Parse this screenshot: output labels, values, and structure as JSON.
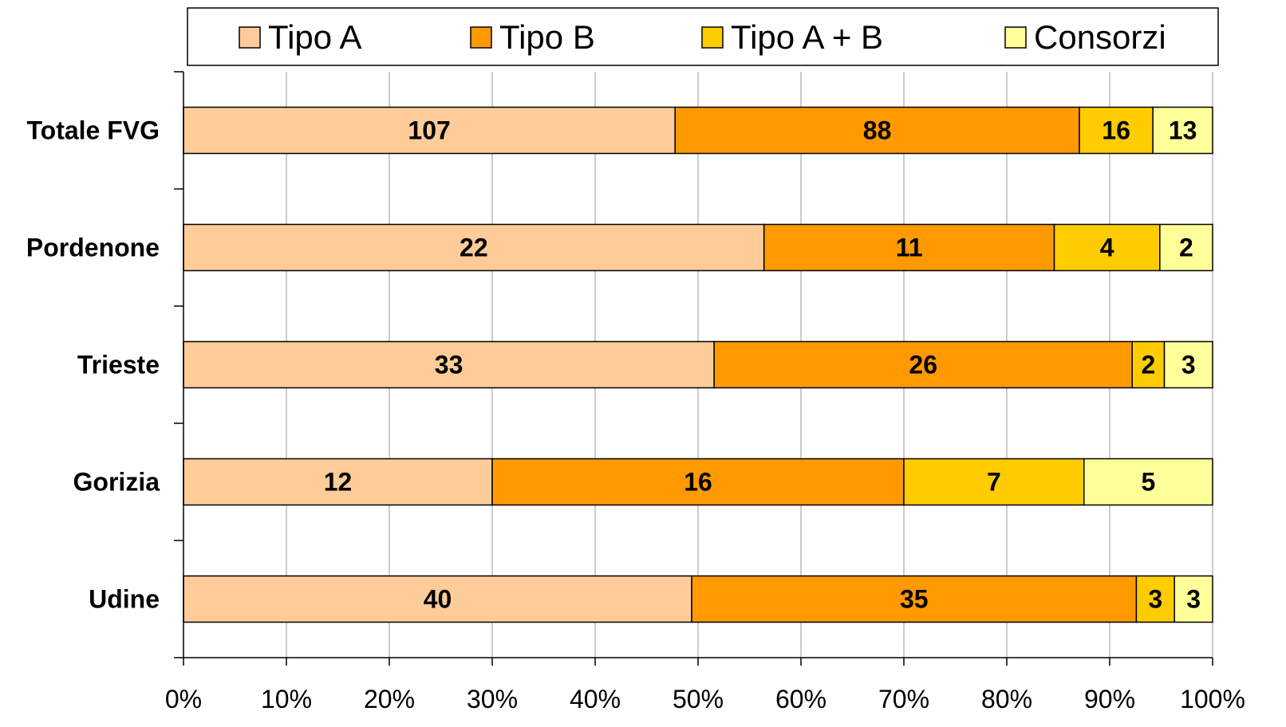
{
  "chart_data": {
    "type": "bar",
    "orientation": "horizontal",
    "stacked": "percent",
    "title": "",
    "xlabel": "",
    "ylabel": "",
    "categories": [
      "Udine",
      "Gorizia",
      "Trieste",
      "Pordenone",
      "Totale FVG"
    ],
    "series": [
      {
        "name": "Tipo A",
        "color": "#FFCC99",
        "values": [
          40,
          12,
          33,
          22,
          107
        ]
      },
      {
        "name": "Tipo B",
        "color": "#FF9900",
        "values": [
          35,
          16,
          26,
          11,
          88
        ]
      },
      {
        "name": "Tipo A + B",
        "color": "#FFCC00",
        "values": [
          3,
          7,
          2,
          4,
          16
        ]
      },
      {
        "name": "Consorzi",
        "color": "#FFFF99",
        "values": [
          3,
          5,
          3,
          2,
          13
        ]
      }
    ],
    "xlim": [
      0,
      100
    ],
    "xticks": [
      "0%",
      "10%",
      "20%",
      "30%",
      "40%",
      "50%",
      "60%",
      "70%",
      "80%",
      "90%",
      "100%"
    ],
    "grid": "vertical",
    "legend": "top"
  }
}
